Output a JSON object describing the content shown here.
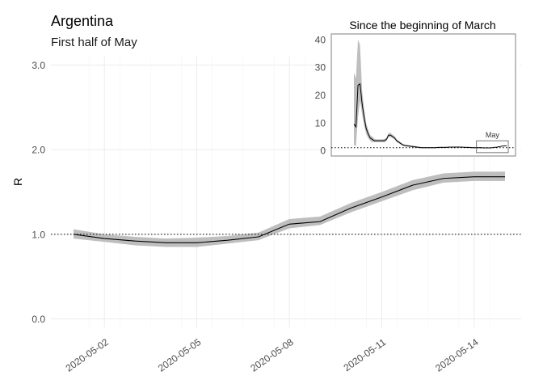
{
  "chart_data": [
    {
      "type": "line",
      "title": "Argentina",
      "subtitle": "First half of May",
      "xlabel": "",
      "ylabel": "R",
      "x": [
        "2020-05-01",
        "2020-05-02",
        "2020-05-03",
        "2020-05-04",
        "2020-05-05",
        "2020-05-06",
        "2020-05-07",
        "2020-05-08",
        "2020-05-09",
        "2020-05-10",
        "2020-05-11",
        "2020-05-12",
        "2020-05-13",
        "2020-05-14",
        "2020-05-15"
      ],
      "x_tick_labels": [
        "2020-05-02",
        "2020-05-05",
        "2020-05-08",
        "2020-05-11",
        "2020-05-14"
      ],
      "ylim": [
        -0.1,
        3.1
      ],
      "y_ticks": [
        0,
        1,
        2,
        3
      ],
      "y_tick_labels": [
        "0.0",
        "1.0",
        "2.0",
        "3.0"
      ],
      "reference_line": 1,
      "grid": true,
      "series": [
        {
          "values": [
            1.0,
            0.95,
            0.92,
            0.9,
            0.9,
            0.93,
            0.97,
            1.12,
            1.15,
            1.31,
            1.44,
            1.58,
            1.66,
            1.68,
            1.68
          ],
          "lower": [
            0.95,
            0.91,
            0.87,
            0.85,
            0.85,
            0.89,
            0.93,
            1.07,
            1.11,
            1.26,
            1.39,
            1.52,
            1.61,
            1.63,
            1.63
          ],
          "upper": [
            1.06,
            1.0,
            0.97,
            0.95,
            0.96,
            0.98,
            1.02,
            1.18,
            1.21,
            1.37,
            1.5,
            1.64,
            1.72,
            1.74,
            1.74
          ],
          "line_color": "#000000",
          "band_color": "#bebebe"
        }
      ]
    },
    {
      "type": "line",
      "title": "Since the beginning of March",
      "y_ticks": [
        0,
        10,
        20,
        30,
        40
      ],
      "y_tick_labels": [
        "0",
        "10",
        "20",
        "30",
        "40"
      ],
      "ylim": [
        -2,
        42
      ],
      "reference_line": 1,
      "annotation": "May",
      "x": [
        0,
        1,
        2,
        3,
        4,
        5,
        6,
        7,
        8,
        9,
        10,
        11,
        12,
        13,
        14,
        15,
        16,
        17,
        18,
        19,
        20,
        21,
        22,
        23,
        24,
        25,
        26,
        27,
        28,
        29,
        30,
        31,
        32,
        33,
        34,
        35,
        36,
        37,
        38,
        39,
        40,
        41,
        42,
        43,
        44,
        45,
        46,
        47,
        48,
        49,
        50,
        51,
        52,
        53,
        54,
        55,
        56,
        57,
        58,
        59,
        60,
        61,
        62,
        63,
        64,
        65,
        66,
        67,
        68,
        69,
        70,
        71,
        72,
        73,
        74,
        75
      ],
      "series": [
        {
          "values": [
            9.5,
            8.5,
            23.5,
            24,
            17,
            12,
            8,
            6,
            4.5,
            4,
            3.5,
            3.5,
            3.5,
            3.5,
            3.5,
            3.5,
            4,
            5.5,
            5.5,
            5,
            4.5,
            3.5,
            3,
            2.5,
            2,
            1.8,
            1.7,
            1.6,
            1.5,
            1.4,
            1.3,
            1.2,
            1.1,
            1.0,
            1.0,
            1.0,
            1.0,
            1.0,
            1.0,
            1.0,
            1.0,
            1.05,
            1.1,
            1.1,
            1.1,
            1.1,
            1.15,
            1.2,
            1.2,
            1.2,
            1.2,
            1.2,
            1.2,
            1.2,
            1.15,
            1.1,
            1.1,
            1.05,
            1.0,
            1.0,
            1.0,
            1.0,
            1.0,
            0.95,
            0.92,
            0.9,
            0.9,
            0.93,
            0.97,
            1.12,
            1.15,
            1.31,
            1.44,
            1.58,
            1.66,
            1.68
          ],
          "lower": [
            2,
            1.5,
            12,
            18,
            13,
            9,
            6,
            4.5,
            3.5,
            3,
            3,
            3,
            3,
            3,
            3,
            3,
            3.5,
            4.8,
            4.8,
            4.4,
            4,
            3,
            2.6,
            2.2,
            1.7,
            1.5,
            1.4,
            1.3,
            1.2,
            1.1,
            1.0,
            0.95,
            0.9,
            0.85,
            0.85,
            0.85,
            0.85,
            0.85,
            0.85,
            0.85,
            0.85,
            0.9,
            0.95,
            0.95,
            0.95,
            0.95,
            1.0,
            1.05,
            1.05,
            1.05,
            1.05,
            1.05,
            1.05,
            1.05,
            1.0,
            0.95,
            0.95,
            0.9,
            0.85,
            0.85,
            0.85,
            0.85,
            0.85,
            0.85,
            0.82,
            0.8,
            0.8,
            0.83,
            0.87,
            1.02,
            1.05,
            1.21,
            1.34,
            1.47,
            1.56,
            1.58
          ],
          "upper": [
            28,
            26,
            40,
            38,
            22,
            15,
            10,
            7.5,
            5.5,
            5,
            4.2,
            4,
            4,
            4,
            4,
            4.2,
            4.6,
            6.3,
            6.3,
            5.7,
            5.1,
            4.1,
            3.5,
            2.9,
            2.4,
            2.1,
            2,
            1.9,
            1.8,
            1.7,
            1.6,
            1.5,
            1.35,
            1.25,
            1.2,
            1.2,
            1.2,
            1.2,
            1.2,
            1.2,
            1.2,
            1.25,
            1.3,
            1.3,
            1.3,
            1.3,
            1.35,
            1.4,
            1.4,
            1.4,
            1.4,
            1.4,
            1.4,
            1.4,
            1.35,
            1.3,
            1.3,
            1.25,
            1.2,
            1.2,
            1.2,
            1.2,
            1.2,
            1.1,
            1.05,
            1.02,
            1.02,
            1.05,
            1.08,
            1.23,
            1.26,
            1.42,
            1.55,
            1.7,
            1.78,
            1.8
          ],
          "line_color": "#000000",
          "band_color": "#bebebe"
        }
      ]
    }
  ]
}
